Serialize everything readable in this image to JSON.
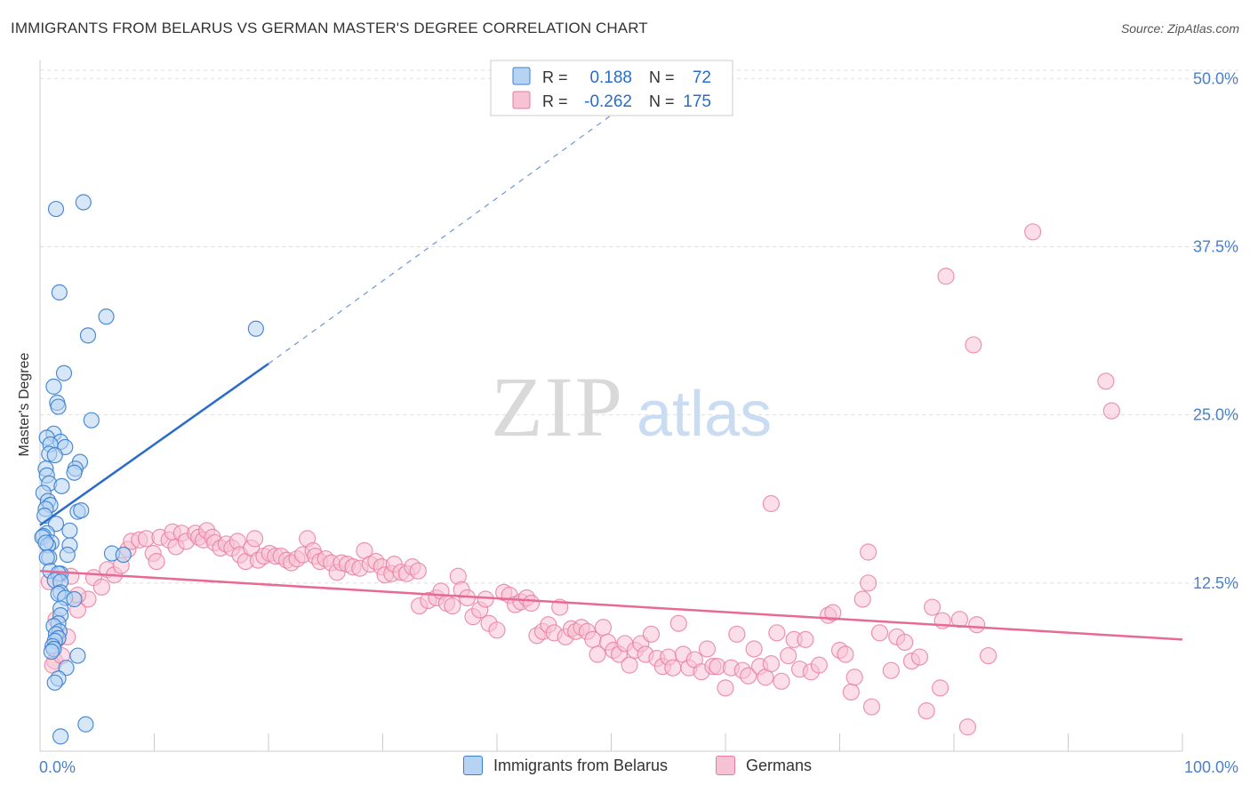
{
  "title": "IMMIGRANTS FROM BELARUS VS GERMAN MASTER'S DEGREE CORRELATION CHART",
  "source": "Source: ZipAtlas.com",
  "watermark": {
    "part1": "ZIP",
    "part2": "atlas"
  },
  "legend": {
    "r_label": "R =",
    "n_label": "N =",
    "rows": [
      {
        "r": "0.188",
        "n": "72"
      },
      {
        "r": "-0.262",
        "n": "175"
      }
    ]
  },
  "colors": {
    "blue": "#3a7fd0",
    "blue_fill": "#b7d3f3",
    "blue_line": "#2a6cc9",
    "pink": "#e77aa0",
    "pink_fill": "#f7c2d4",
    "pink_line": "#e76a96",
    "axis_label": "#4a80c8",
    "grid": "#dddddd"
  },
  "chart_data": {
    "type": "scatter",
    "xlabel": "",
    "ylabel": "Master's Degree",
    "xlim": [
      0,
      100
    ],
    "ylim": [
      0,
      52
    ],
    "x_tick_labels": {
      "min": "0.0%",
      "max": "100.0%"
    },
    "y_ticks": [
      {
        "value": 12.5,
        "label": "12.5%"
      },
      {
        "value": 25.0,
        "label": "25.0%"
      },
      {
        "value": 37.5,
        "label": "37.5%"
      },
      {
        "value": 50.0,
        "label": "50.0%"
      }
    ],
    "series": [
      {
        "name": "Immigrants from Belarus",
        "color": "blue",
        "r": 0.188,
        "n": 72,
        "trend": {
          "x0": 0,
          "y0": 16.8,
          "x1": 20,
          "y1": 28.8,
          "dash_to_x": 52,
          "dash_to_y": 48.5
        },
        "points": [
          [
            3.8,
            40.8
          ],
          [
            1.4,
            40.3
          ],
          [
            1.7,
            34.1
          ],
          [
            5.8,
            32.3
          ],
          [
            4.2,
            30.9
          ],
          [
            18.9,
            31.4
          ],
          [
            2.1,
            28.1
          ],
          [
            1.2,
            27.1
          ],
          [
            1.5,
            25.9
          ],
          [
            1.6,
            25.6
          ],
          [
            4.5,
            24.6
          ],
          [
            1.2,
            23.6
          ],
          [
            0.6,
            23.3
          ],
          [
            1.8,
            23.0
          ],
          [
            0.9,
            22.8
          ],
          [
            2.2,
            22.6
          ],
          [
            0.8,
            22.1
          ],
          [
            1.3,
            22.0
          ],
          [
            3.5,
            21.5
          ],
          [
            3.1,
            21.0
          ],
          [
            0.5,
            21.0
          ],
          [
            3.0,
            20.7
          ],
          [
            0.6,
            20.5
          ],
          [
            0.8,
            19.9
          ],
          [
            1.9,
            19.7
          ],
          [
            0.3,
            19.2
          ],
          [
            0.7,
            18.6
          ],
          [
            0.9,
            18.3
          ],
          [
            0.5,
            18.0
          ],
          [
            3.3,
            17.8
          ],
          [
            3.6,
            17.9
          ],
          [
            0.4,
            17.5
          ],
          [
            1.4,
            16.9
          ],
          [
            0.6,
            16.2
          ],
          [
            2.6,
            16.4
          ],
          [
            0.3,
            16.0
          ],
          [
            0.2,
            15.9
          ],
          [
            1.0,
            15.5
          ],
          [
            0.7,
            15.3
          ],
          [
            2.6,
            15.3
          ],
          [
            0.5,
            15.5
          ],
          [
            6.3,
            14.7
          ],
          [
            0.8,
            14.4
          ],
          [
            2.4,
            14.6
          ],
          [
            0.6,
            14.4
          ],
          [
            7.3,
            14.6
          ],
          [
            0.9,
            13.4
          ],
          [
            1.8,
            13.2
          ],
          [
            1.6,
            13.2
          ],
          [
            1.3,
            12.7
          ],
          [
            1.8,
            12.6
          ],
          [
            1.8,
            11.8
          ],
          [
            1.6,
            11.7
          ],
          [
            2.2,
            11.4
          ],
          [
            3.0,
            11.3
          ],
          [
            1.8,
            10.6
          ],
          [
            1.8,
            10.1
          ],
          [
            1.6,
            9.5
          ],
          [
            1.2,
            9.3
          ],
          [
            1.7,
            8.9
          ],
          [
            1.4,
            8.7
          ],
          [
            1.6,
            8.4
          ],
          [
            1.3,
            8.2
          ],
          [
            1.1,
            7.8
          ],
          [
            1.2,
            7.6
          ],
          [
            3.3,
            7.1
          ],
          [
            1.0,
            7.4
          ],
          [
            2.3,
            6.2
          ],
          [
            1.6,
            5.4
          ],
          [
            1.3,
            5.1
          ],
          [
            4.0,
            2.0
          ],
          [
            1.8,
            1.1
          ]
        ]
      },
      {
        "name": "Germans",
        "color": "pink",
        "r": -0.262,
        "n": 175,
        "trend": {
          "x0": 0,
          "y0": 13.4,
          "x1": 100,
          "y1": 8.3
        },
        "points": [
          [
            0.8,
            12.6
          ],
          [
            2.7,
            13.0
          ],
          [
            4.7,
            12.9
          ],
          [
            5.4,
            12.2
          ],
          [
            4.2,
            11.3
          ],
          [
            3.3,
            11.6
          ],
          [
            3.3,
            10.5
          ],
          [
            1.4,
            9.8
          ],
          [
            1.5,
            8.3
          ],
          [
            2.4,
            8.5
          ],
          [
            1.3,
            6.7
          ],
          [
            1.1,
            6.4
          ],
          [
            1.9,
            7.1
          ],
          [
            5.9,
            13.5
          ],
          [
            6.5,
            13.1
          ],
          [
            7.1,
            13.8
          ],
          [
            7.7,
            15.0
          ],
          [
            8.0,
            15.6
          ],
          [
            8.7,
            15.7
          ],
          [
            9.3,
            15.8
          ],
          [
            9.9,
            14.7
          ],
          [
            10.2,
            14.1
          ],
          [
            10.5,
            15.9
          ],
          [
            11.3,
            15.7
          ],
          [
            11.9,
            15.2
          ],
          [
            11.6,
            16.3
          ],
          [
            12.4,
            16.2
          ],
          [
            12.8,
            15.6
          ],
          [
            13.6,
            16.2
          ],
          [
            13.9,
            15.9
          ],
          [
            14.3,
            15.7
          ],
          [
            14.6,
            16.4
          ],
          [
            15.1,
            15.9
          ],
          [
            15.3,
            15.5
          ],
          [
            15.8,
            15.1
          ],
          [
            16.3,
            15.4
          ],
          [
            16.8,
            15.1
          ],
          [
            17.3,
            15.6
          ],
          [
            17.5,
            14.6
          ],
          [
            18.0,
            14.1
          ],
          [
            18.5,
            15.1
          ],
          [
            18.8,
            15.8
          ],
          [
            19.1,
            14.2
          ],
          [
            19.6,
            14.5
          ],
          [
            20.1,
            14.7
          ],
          [
            20.6,
            14.5
          ],
          [
            21.1,
            14.5
          ],
          [
            21.6,
            14.2
          ],
          [
            22.0,
            14.0
          ],
          [
            22.5,
            14.3
          ],
          [
            23.0,
            14.6
          ],
          [
            23.4,
            15.8
          ],
          [
            23.9,
            14.9
          ],
          [
            24.1,
            14.5
          ],
          [
            24.5,
            14.1
          ],
          [
            25.0,
            14.3
          ],
          [
            25.5,
            14.0
          ],
          [
            26.0,
            13.3
          ],
          [
            26.4,
            14.0
          ],
          [
            26.9,
            13.9
          ],
          [
            27.4,
            13.7
          ],
          [
            28.0,
            13.6
          ],
          [
            28.4,
            14.9
          ],
          [
            28.9,
            13.9
          ],
          [
            29.4,
            14.1
          ],
          [
            29.9,
            13.7
          ],
          [
            30.2,
            13.1
          ],
          [
            30.8,
            13.2
          ],
          [
            31.0,
            13.9
          ],
          [
            31.6,
            13.3
          ],
          [
            32.1,
            13.2
          ],
          [
            32.6,
            13.7
          ],
          [
            33.1,
            13.4
          ],
          [
            33.2,
            10.8
          ],
          [
            34.0,
            11.2
          ],
          [
            34.7,
            11.4
          ],
          [
            35.1,
            11.9
          ],
          [
            35.6,
            11.0
          ],
          [
            36.1,
            10.8
          ],
          [
            36.6,
            13.0
          ],
          [
            36.9,
            12.0
          ],
          [
            37.4,
            11.4
          ],
          [
            37.9,
            10.0
          ],
          [
            38.5,
            10.5
          ],
          [
            39.0,
            11.3
          ],
          [
            39.3,
            9.5
          ],
          [
            40.0,
            9.0
          ],
          [
            40.6,
            11.8
          ],
          [
            41.1,
            11.6
          ],
          [
            41.6,
            10.9
          ],
          [
            42.1,
            11.1
          ],
          [
            42.6,
            11.4
          ],
          [
            43.0,
            11.0
          ],
          [
            43.5,
            8.6
          ],
          [
            44.0,
            8.9
          ],
          [
            44.5,
            9.4
          ],
          [
            45.0,
            8.8
          ],
          [
            45.5,
            10.7
          ],
          [
            46.0,
            8.5
          ],
          [
            46.5,
            9.1
          ],
          [
            46.9,
            8.9
          ],
          [
            47.4,
            9.2
          ],
          [
            47.9,
            8.9
          ],
          [
            48.4,
            8.3
          ],
          [
            48.8,
            7.2
          ],
          [
            49.3,
            9.2
          ],
          [
            49.7,
            8.1
          ],
          [
            50.2,
            7.5
          ],
          [
            50.7,
            7.2
          ],
          [
            51.2,
            8.0
          ],
          [
            51.6,
            6.4
          ],
          [
            52.1,
            7.5
          ],
          [
            52.6,
            8.0
          ],
          [
            53.0,
            7.2
          ],
          [
            53.5,
            8.7
          ],
          [
            54.0,
            6.9
          ],
          [
            54.5,
            6.3
          ],
          [
            55.0,
            7.0
          ],
          [
            55.4,
            6.2
          ],
          [
            55.9,
            9.5
          ],
          [
            56.3,
            7.2
          ],
          [
            56.8,
            6.2
          ],
          [
            57.3,
            6.8
          ],
          [
            57.9,
            5.9
          ],
          [
            58.4,
            7.6
          ],
          [
            58.9,
            6.3
          ],
          [
            59.3,
            6.3
          ],
          [
            60.0,
            4.7
          ],
          [
            60.5,
            6.2
          ],
          [
            61.0,
            8.7
          ],
          [
            61.5,
            6.0
          ],
          [
            62.0,
            5.6
          ],
          [
            62.5,
            7.6
          ],
          [
            63.0,
            6.3
          ],
          [
            63.5,
            5.5
          ],
          [
            64.0,
            6.5
          ],
          [
            64.5,
            8.8
          ],
          [
            64.9,
            5.2
          ],
          [
            65.5,
            7.1
          ],
          [
            66.0,
            8.3
          ],
          [
            66.5,
            6.1
          ],
          [
            67.0,
            8.3
          ],
          [
            67.5,
            5.9
          ],
          [
            68.2,
            6.4
          ],
          [
            69.0,
            10.1
          ],
          [
            69.4,
            10.3
          ],
          [
            70.0,
            7.5
          ],
          [
            70.5,
            7.2
          ],
          [
            71.0,
            4.4
          ],
          [
            71.3,
            5.5
          ],
          [
            72.0,
            11.3
          ],
          [
            72.5,
            12.5
          ],
          [
            72.8,
            3.3
          ],
          [
            73.5,
            8.8
          ],
          [
            74.5,
            6.0
          ],
          [
            75.0,
            8.5
          ],
          [
            75.7,
            8.1
          ],
          [
            76.3,
            6.7
          ],
          [
            77.0,
            7.0
          ],
          [
            77.6,
            3.0
          ],
          [
            78.1,
            10.7
          ],
          [
            78.8,
            4.7
          ],
          [
            79.0,
            9.7
          ],
          [
            80.5,
            9.8
          ],
          [
            81.2,
            1.8
          ],
          [
            82.0,
            9.4
          ],
          [
            83.0,
            7.1
          ],
          [
            72.5,
            14.8
          ],
          [
            64.0,
            18.4
          ],
          [
            79.3,
            35.3
          ],
          [
            81.7,
            30.2
          ],
          [
            86.9,
            38.6
          ],
          [
            93.3,
            27.5
          ],
          [
            93.8,
            25.3
          ]
        ]
      }
    ]
  }
}
